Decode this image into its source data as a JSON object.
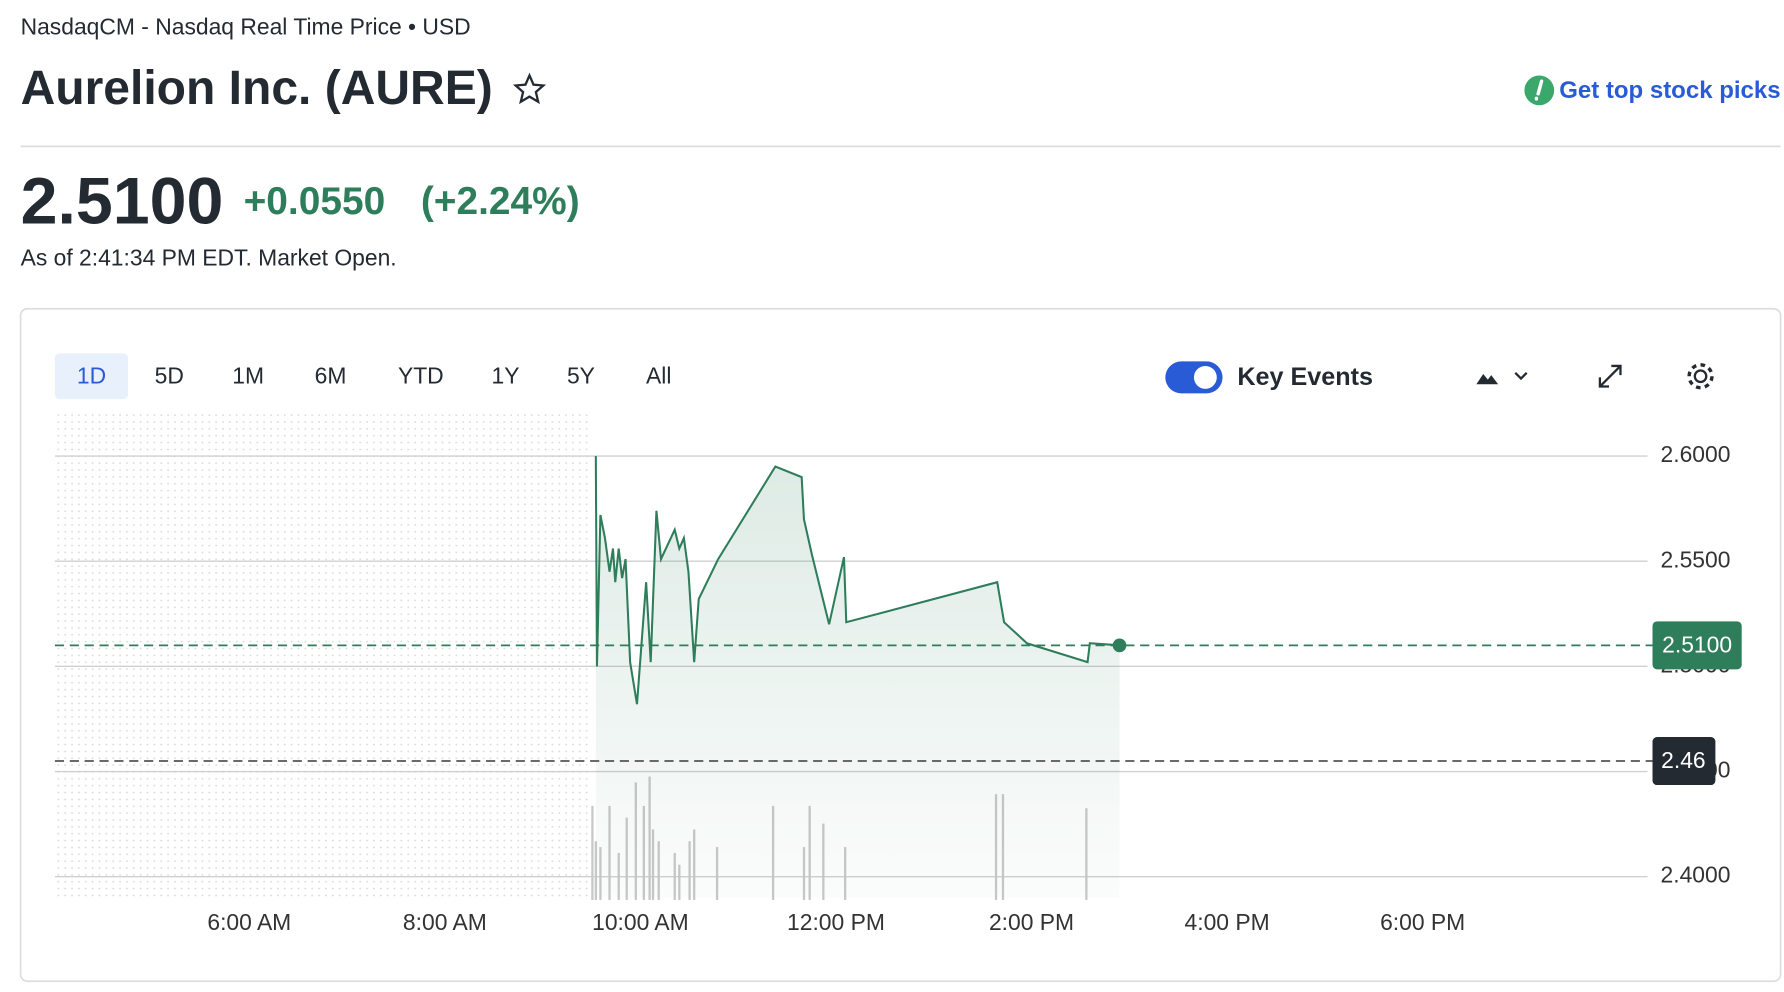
{
  "header": {
    "source": "NasdaqCM - Nasdaq Real Time Price • USD",
    "title": "Aurelion Inc. (AURE)",
    "link": "Get top stock picks"
  },
  "quote": {
    "price": "2.5100",
    "change": "+0.0550",
    "change_percent": "(+2.24%)",
    "timestamp": "As of 2:41:34 PM EDT. Market Open."
  },
  "toolbar": {
    "ranges": [
      "1D",
      "5D",
      "1M",
      "6M",
      "YTD",
      "1Y",
      "5Y",
      "All"
    ],
    "selected": 0,
    "key_events": {
      "label": "Key Events",
      "on": true
    }
  },
  "chart_data": {
    "type": "line",
    "color": "#2e7d5b",
    "x": [
      9.544,
      9.556,
      9.591,
      9.637,
      9.684,
      9.719,
      9.743,
      9.778,
      9.813,
      9.848,
      9.895,
      9.965,
      10.058,
      10.105,
      10.164,
      10.211,
      10.351,
      10.398,
      10.444,
      10.491,
      10.55,
      10.596,
      10.795,
      11.38,
      11.649,
      11.673,
      11.754,
      11.93,
      12.082,
      12.105,
      13.649,
      13.719,
      13.953,
      14.573,
      14.596,
      14.9
    ],
    "values": [
      2.6,
      2.5,
      2.572,
      2.561,
      2.545,
      2.556,
      2.54,
      2.556,
      2.542,
      2.551,
      2.502,
      2.482,
      2.54,
      2.502,
      2.574,
      2.551,
      2.565,
      2.556,
      2.561,
      2.545,
      2.502,
      2.532,
      2.551,
      2.595,
      2.59,
      2.57,
      2.553,
      2.52,
      2.552,
      2.521,
      2.54,
      2.521,
      2.511,
      2.502,
      2.511,
      2.51
    ],
    "volume": {
      "color": "#c8c8c8",
      "x": [
        9.509,
        9.544,
        9.591,
        9.684,
        9.778,
        9.86,
        9.953,
        10.035,
        10.094,
        10.129,
        10.187,
        10.351,
        10.398,
        10.503,
        10.55,
        10.784,
        11.357,
        11.673,
        11.731,
        11.871,
        12.094,
        13.637,
        13.708,
        14.561
      ],
      "values": [
        80,
        50,
        45,
        80,
        40,
        70,
        100,
        80,
        105,
        60,
        50,
        40,
        30,
        50,
        60,
        45,
        80,
        45,
        80,
        65,
        45,
        90,
        90,
        78
      ]
    },
    "xlim": [
      4,
      20.3
    ],
    "xticks": [
      {
        "value": 6,
        "label": "6:00 AM"
      },
      {
        "value": 8,
        "label": "8:00 AM"
      },
      {
        "value": 10,
        "label": "10:00 AM"
      },
      {
        "value": 12,
        "label": "12:00 PM"
      },
      {
        "value": 14,
        "label": "2:00 PM"
      },
      {
        "value": 16,
        "label": "4:00 PM"
      },
      {
        "value": 18,
        "label": "6:00 PM"
      }
    ],
    "ylim": [
      2.39,
      2.62
    ],
    "yticks": [
      {
        "value": 2.4,
        "label": "2.4000"
      },
      {
        "value": 2.45,
        "label": "2.4500"
      },
      {
        "value": 2.5,
        "label": "2.5000"
      },
      {
        "value": 2.55,
        "label": "2.5500"
      },
      {
        "value": 2.6,
        "label": "2.6000"
      }
    ],
    "current": {
      "value": 2.51,
      "label": "2.5100"
    },
    "reference": {
      "value": 2.455,
      "label": "2.46"
    }
  }
}
